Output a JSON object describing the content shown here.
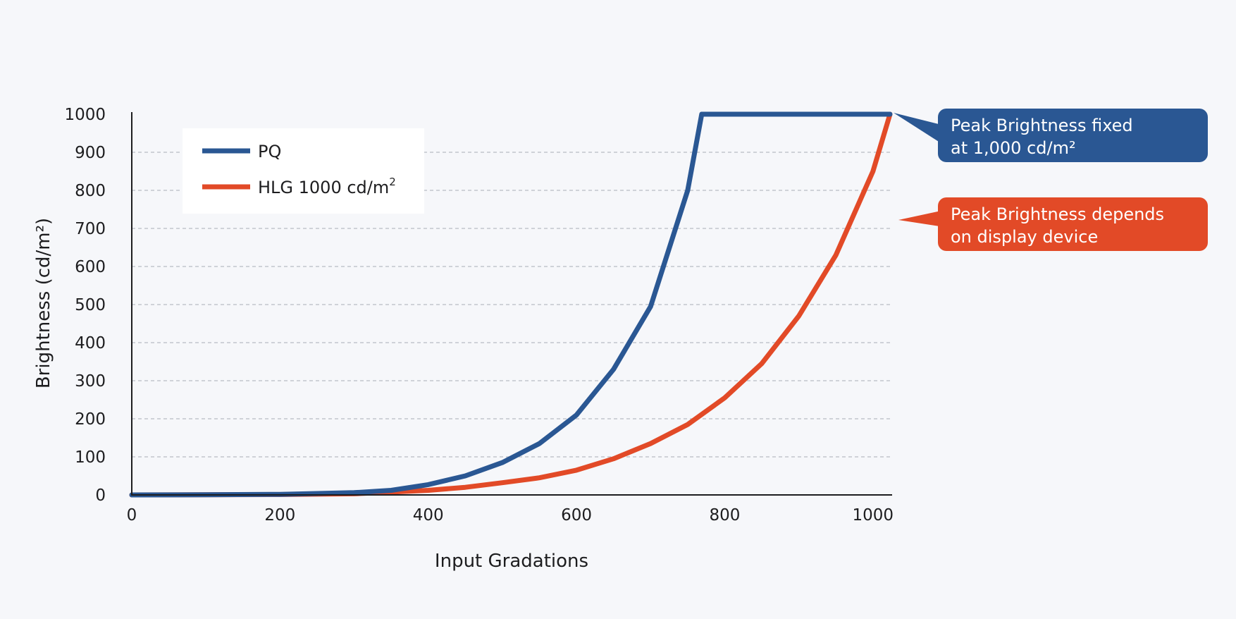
{
  "chart_data": {
    "type": "line",
    "title": "",
    "xlabel": "Input Gradations",
    "ylabel": "Brightness (cd/m²)",
    "xlim": [
      0,
      1023
    ],
    "ylim": [
      0,
      1000
    ],
    "xticks": [
      0,
      200,
      400,
      600,
      800,
      1000
    ],
    "yticks": [
      0,
      100,
      200,
      300,
      400,
      500,
      600,
      700,
      800,
      900,
      1000
    ],
    "grid": "horizontal dashed",
    "legend_position": "top-left",
    "series": [
      {
        "name": "PQ",
        "legend_label": "PQ",
        "color": "#2a5793",
        "points": [
          [
            0,
            0
          ],
          [
            100,
            0.3
          ],
          [
            200,
            1.5
          ],
          [
            300,
            6
          ],
          [
            350,
            12
          ],
          [
            400,
            27
          ],
          [
            450,
            50
          ],
          [
            500,
            85
          ],
          [
            550,
            135
          ],
          [
            600,
            210
          ],
          [
            650,
            330
          ],
          [
            700,
            495
          ],
          [
            750,
            800
          ],
          [
            769,
            1000
          ],
          [
            1023,
            1000
          ]
        ]
      },
      {
        "name": "HLG 1000 cd/m2",
        "legend_label": "HLG 1000 cd/m",
        "legend_superscript": "2",
        "color": "#e24a27",
        "points": [
          [
            0,
            0
          ],
          [
            200,
            1
          ],
          [
            300,
            3
          ],
          [
            400,
            12
          ],
          [
            450,
            20
          ],
          [
            500,
            32
          ],
          [
            550,
            45
          ],
          [
            600,
            65
          ],
          [
            650,
            95
          ],
          [
            700,
            135
          ],
          [
            750,
            185
          ],
          [
            800,
            255
          ],
          [
            850,
            345
          ],
          [
            900,
            470
          ],
          [
            950,
            630
          ],
          [
            1000,
            850
          ],
          [
            1023,
            1000
          ]
        ]
      }
    ]
  },
  "callouts": {
    "pq": {
      "lines": [
        "Peak Brightness fixed",
        "at 1,000 cd/m²"
      ],
      "color": "#2a5793"
    },
    "hlg": {
      "lines": [
        "Peak Brightness depends",
        "on display device"
      ],
      "color": "#e24a27"
    }
  }
}
